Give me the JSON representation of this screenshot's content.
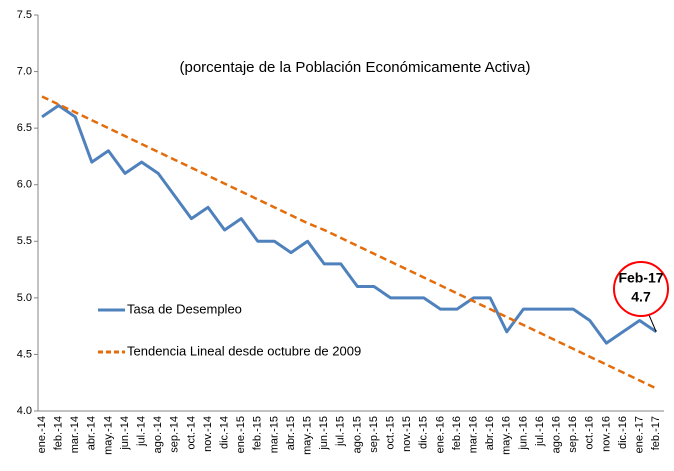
{
  "chart_data": {
    "type": "line",
    "subtitle": "(porcentaje de la Población Económicamente Activa)",
    "categories": [
      "ene.-14",
      "feb.-14",
      "mar.-14",
      "abr.-14",
      "may.-14",
      "jun.-14",
      "jul.-14",
      "ago.-14",
      "sep.-14",
      "oct.-14",
      "nov.-14",
      "dic.-14",
      "ene.-15",
      "feb.-15",
      "mar.-15",
      "abr.-15",
      "may.-15",
      "jun.-15",
      "jul.-15",
      "ago.-15",
      "sep.-15",
      "oct.-15",
      "nov.-15",
      "dic.-15",
      "ene.-16",
      "feb.-16",
      "mar.-16",
      "abr.-16",
      "may.-16",
      "jun.-16",
      "jul.-16",
      "ago.-16",
      "sep.-16",
      "oct.-16",
      "nov.-16",
      "dic.-16",
      "ene.-17",
      "feb.-17"
    ],
    "series": [
      {
        "name": "Tasa de Desempleo",
        "color": "#4f81bd",
        "dashed": false,
        "values": [
          6.6,
          6.7,
          6.6,
          6.2,
          6.3,
          6.1,
          6.2,
          6.1,
          5.9,
          5.7,
          5.8,
          5.6,
          5.7,
          5.5,
          5.5,
          5.4,
          5.5,
          5.3,
          5.3,
          5.1,
          5.1,
          5.0,
          5.0,
          5.0,
          4.9,
          4.9,
          5.0,
          5.0,
          4.7,
          4.9,
          4.9,
          4.9,
          4.9,
          4.8,
          4.6,
          4.7,
          4.8,
          4.7
        ]
      },
      {
        "name": "Tendencia Lineal desde octubre de 2009",
        "color": "#e46c0a",
        "dashed": true,
        "values": [
          6.78,
          6.71,
          6.64,
          6.57,
          6.5,
          6.43,
          6.36,
          6.29,
          6.22,
          6.15,
          6.08,
          6.01,
          5.94,
          5.87,
          5.8,
          5.73,
          5.66,
          5.6,
          5.53,
          5.46,
          5.39,
          5.32,
          5.25,
          5.18,
          5.11,
          5.04,
          4.97,
          4.9,
          4.83,
          4.76,
          4.69,
          4.62,
          4.55,
          4.48,
          4.41,
          4.34,
          4.27,
          4.2
        ]
      }
    ],
    "ylim": [
      4.0,
      7.5
    ],
    "yticks": [
      {
        "value": 4.0,
        "label": "4.0"
      },
      {
        "value": 4.5,
        "label": "4.5"
      },
      {
        "value": 5.0,
        "label": "5.0"
      },
      {
        "value": 5.5,
        "label": "5.5"
      },
      {
        "value": 6.0,
        "label": "6.0"
      },
      {
        "value": 6.5,
        "label": "6.5"
      },
      {
        "value": 7.0,
        "label": "7.0"
      },
      {
        "value": 7.5,
        "label": "7.5"
      }
    ],
    "grid": false,
    "callout": {
      "label": "Feb-17",
      "value": 4.7,
      "color": "#ff0000"
    }
  }
}
